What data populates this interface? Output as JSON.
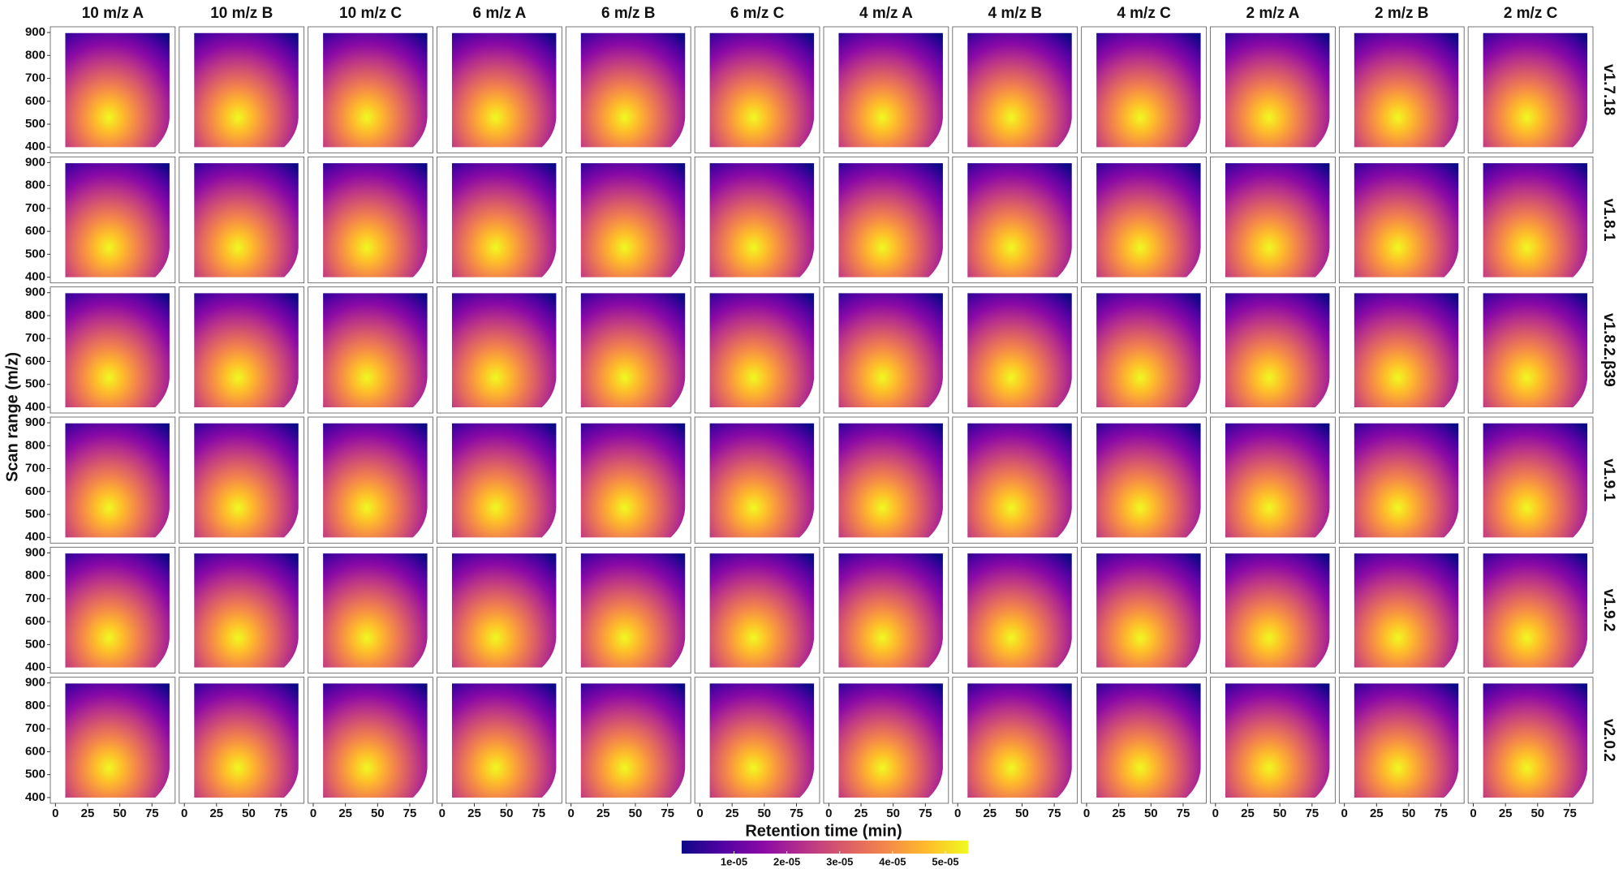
{
  "chart_data": {
    "type": "density_facets",
    "columns": [
      "10 m/z A",
      "10 m/z B",
      "10 m/z C",
      "6 m/z A",
      "6 m/z B",
      "6 m/z C",
      "4 m/z A",
      "4 m/z B",
      "4 m/z C",
      "2 m/z A",
      "2 m/z B",
      "2 m/z C"
    ],
    "rows": [
      "v1.7.18",
      "v1.8.1",
      "v1.8.2.β39",
      "v1.9.1",
      "v1.9.2",
      "v2.0.2"
    ],
    "x_label": "Retention time (min)",
    "y_label": "Scan range (m/z)",
    "xlim": [
      -4,
      93
    ],
    "xticks": [
      0,
      25,
      50,
      75
    ],
    "ylim": [
      375,
      925
    ],
    "yticks": [
      400,
      500,
      600,
      700,
      800,
      900
    ],
    "colorscale": [
      "#0d0887",
      "#5302a3",
      "#8b0aa5",
      "#b83289",
      "#db5c68",
      "#f48849",
      "#febd2a",
      "#f0f921"
    ],
    "clim": [
      1e-07,
      5.43e-05
    ],
    "cticks": [
      {
        "value": 1e-05,
        "label": "1e-05"
      },
      {
        "value": 2e-05,
        "label": "2e-05"
      },
      {
        "value": 3e-05,
        "label": "3e-05"
      },
      {
        "value": 4e-05,
        "label": "4e-05"
      },
      {
        "value": 5e-05,
        "label": "5e-05"
      }
    ]
  }
}
